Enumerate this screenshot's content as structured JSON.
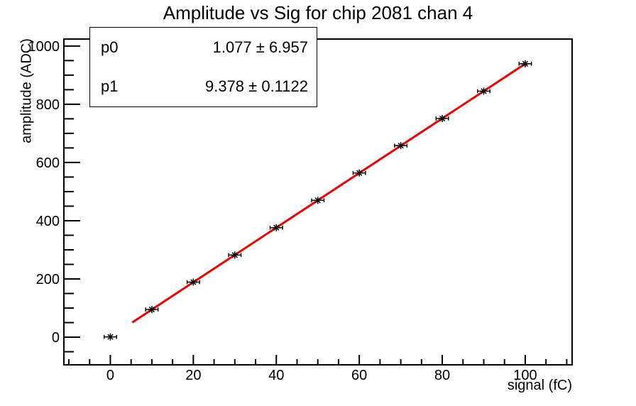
{
  "chart_data": {
    "type": "scatter",
    "title": "Amplitude vs Sig for chip 2081 chan 4",
    "xlabel": "signal (fC)",
    "ylabel": "amplitude (ADC)",
    "x": [
      0,
      10,
      20,
      30,
      40,
      50,
      60,
      70,
      80,
      90,
      100
    ],
    "y": [
      1,
      95,
      189,
      282,
      376,
      470,
      564,
      658,
      751,
      845,
      939
    ],
    "x_error": 1.5,
    "marker": "star",
    "marker_color": "#000000",
    "xlim": [
      -11.2,
      111.3
    ],
    "ylim": [
      -95,
      1024
    ],
    "x_major_ticks": [
      0,
      20,
      40,
      60,
      80,
      100
    ],
    "x_tick_labels": [
      "0",
      "20",
      "40",
      "60",
      "80",
      "100"
    ],
    "x_minor_step": 5,
    "y_major_ticks": [
      0,
      200,
      400,
      600,
      800,
      1000
    ],
    "y_tick_labels": [
      "0",
      "200",
      "400",
      "600",
      "800",
      "1000"
    ],
    "y_minor_step": 50,
    "grid": false,
    "legend_position": "none",
    "fit": {
      "type": "linear",
      "p0": 1.077,
      "p1": 9.378,
      "range": [
        5.3,
        100
      ],
      "color": "#ee0000",
      "line_width": 3
    }
  },
  "stats_box": {
    "rows": [
      {
        "name": "p0",
        "value": "1.077 ± 6.957"
      },
      {
        "name": "p1",
        "value": "9.378 ± 0.1122"
      }
    ]
  },
  "colors": {
    "frame": "#000000",
    "background": "#ffffff",
    "fit_line": "#ee0000"
  }
}
